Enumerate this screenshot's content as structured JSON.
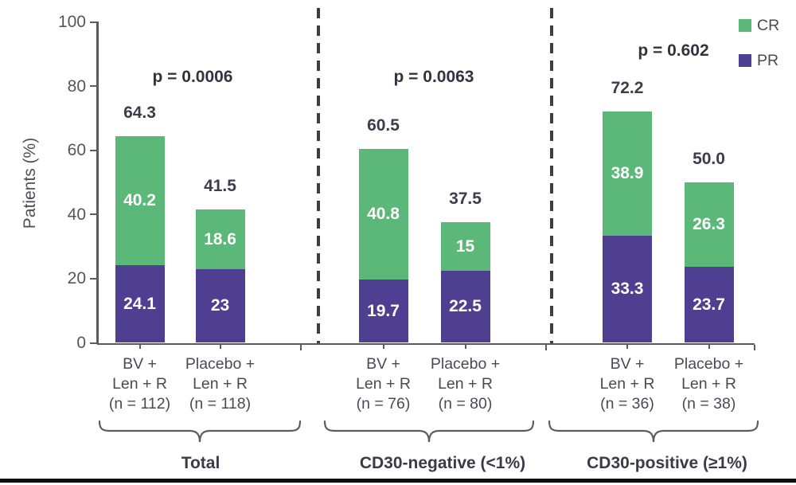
{
  "colors": {
    "cr_green": "#5cb878",
    "pr_purple": "#4e3f90",
    "axis": "#5a5a63",
    "text_dark": "#3c3c4a",
    "text_gray": "#4a4a55"
  },
  "chart_data": {
    "type": "bar",
    "stacked": true,
    "title": "",
    "ylabel": "Patients (%)",
    "ylim": [
      0,
      100
    ],
    "yticks": [
      0,
      20,
      40,
      60,
      80,
      100
    ],
    "grid": false,
    "legend_position": "top-right",
    "legend": [
      {
        "label": "CR",
        "color": "#5cb878"
      },
      {
        "label": "PR",
        "color": "#4e3f90"
      }
    ],
    "panels": [
      {
        "group_label": "Total",
        "p_value": "p = 0.0006",
        "bars": [
          {
            "x_label": [
              "BV +",
              "Len + R",
              "(n = 112)"
            ],
            "total": 64.3,
            "total_label": "64.3",
            "CR": 40.2,
            "CR_label": "40.2",
            "PR": 24.1,
            "PR_label": "24.1"
          },
          {
            "x_label": [
              "Placebo +",
              "Len + R",
              "(n = 118)"
            ],
            "total": 41.5,
            "total_label": "41.5",
            "CR": 18.6,
            "CR_label": "18.6",
            "PR": 23,
            "PR_label": "23"
          }
        ]
      },
      {
        "group_label": "CD30-negative (<1%)",
        "p_value": "p = 0.0063",
        "bars": [
          {
            "x_label": [
              "BV +",
              "Len + R",
              "(n = 76)"
            ],
            "total": 60.5,
            "total_label": "60.5",
            "CR": 40.8,
            "CR_label": "40.8",
            "PR": 19.7,
            "PR_label": "19.7"
          },
          {
            "x_label": [
              "Placebo +",
              "Len + R",
              "(n = 80)"
            ],
            "total": 37.5,
            "total_label": "37.5",
            "CR": 15,
            "CR_label": "15",
            "PR": 22.5,
            "PR_label": "22.5"
          }
        ]
      },
      {
        "group_label": "CD30-positive (≥1%)",
        "p_value": "p = 0.602",
        "bars": [
          {
            "x_label": [
              "BV +",
              "Len + R",
              "(n = 36)"
            ],
            "total": 72.2,
            "total_label": "72.2",
            "CR": 38.9,
            "CR_label": "38.9",
            "PR": 33.3,
            "PR_label": "33.3"
          },
          {
            "x_label": [
              "Placebo +",
              "Len + R",
              "(n = 38)"
            ],
            "total": 50.0,
            "total_label": "50.0",
            "CR": 26.3,
            "CR_label": "26.3",
            "PR": 23.7,
            "PR_label": "23.7"
          }
        ]
      }
    ]
  }
}
